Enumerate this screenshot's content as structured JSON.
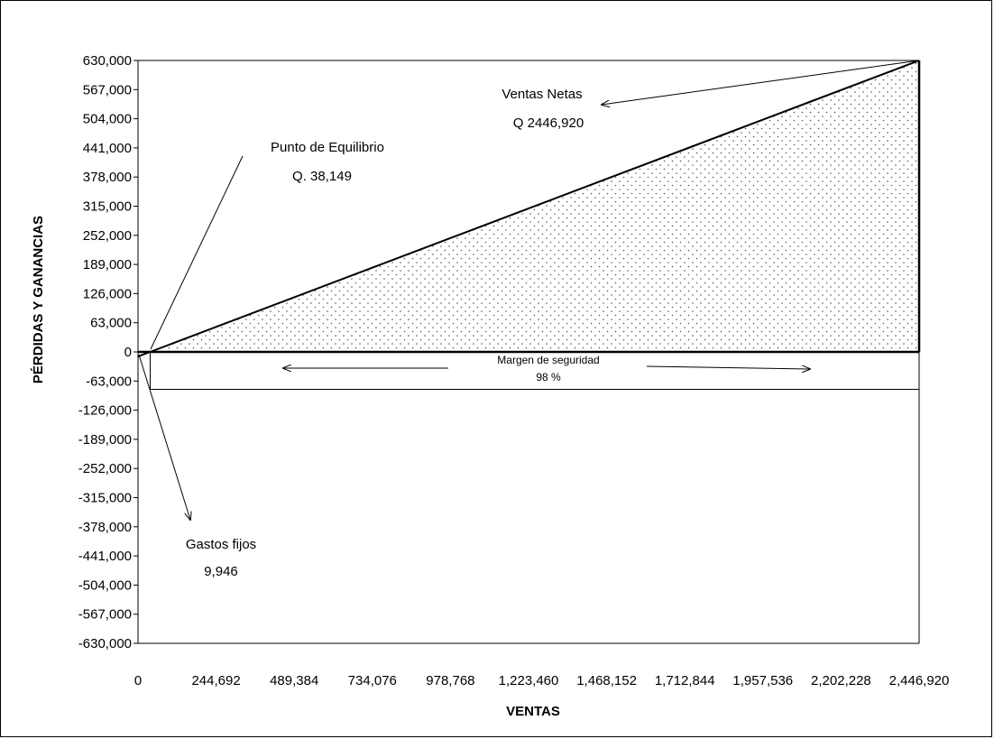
{
  "chart_data": {
    "type": "line",
    "title": "",
    "xlabel": "VENTAS",
    "ylabel": "PÉRDIDAS Y GANANCIAS",
    "xlim": [
      0,
      2446920
    ],
    "ylim": [
      -630000,
      630000
    ],
    "x_ticks": [
      "0",
      "244,692",
      "489,384",
      "734,076",
      "978,768",
      "1,223,460",
      "1,468,152",
      "1,712,844",
      "1,957,536",
      "2,202,228",
      "2,446,920"
    ],
    "x_tick_values": [
      0,
      244692,
      489384,
      734076,
      978768,
      1223460,
      1468152,
      1712844,
      1957536,
      2202228,
      2446920
    ],
    "y_ticks": [
      "630,000",
      "567,000",
      "504,000",
      "441,000",
      "378,000",
      "315,000",
      "252,000",
      "189,000",
      "126,000",
      "63,000",
      "0",
      "-63,000",
      "-126,000",
      "-189,000",
      "-252,000",
      "-315,000",
      "-378,000",
      "-441,000",
      "-504,000",
      "-567,000",
      "-630,000"
    ],
    "y_tick_values": [
      630000,
      567000,
      504000,
      441000,
      378000,
      315000,
      252000,
      189000,
      126000,
      63000,
      0,
      -63000,
      -126000,
      -189000,
      -252000,
      -315000,
      -378000,
      -441000,
      -504000,
      -567000,
      -630000
    ],
    "grid": false,
    "series": [
      {
        "x": [
          0,
          38149,
          2446920
        ],
        "y": [
          -9946,
          0,
          630000
        ]
      }
    ],
    "shaded_region": {
      "x": [
        38149,
        2446920
      ],
      "y_top": [
        0,
        630000
      ],
      "y_bottom": 0,
      "pattern": "dots"
    },
    "annotations": {
      "ventas_netas": {
        "line1": "Ventas Netas",
        "line2": "Q 2446,920"
      },
      "punto_equilibrio": {
        "line1": "Punto de Equilibrio",
        "line2": "Q. 38,149"
      },
      "gastos_fijos": {
        "line1": "Gastos fijos",
        "line2": "9,946"
      },
      "margen": {
        "line1": "Margen de seguridad",
        "line2": "98 %"
      }
    }
  }
}
